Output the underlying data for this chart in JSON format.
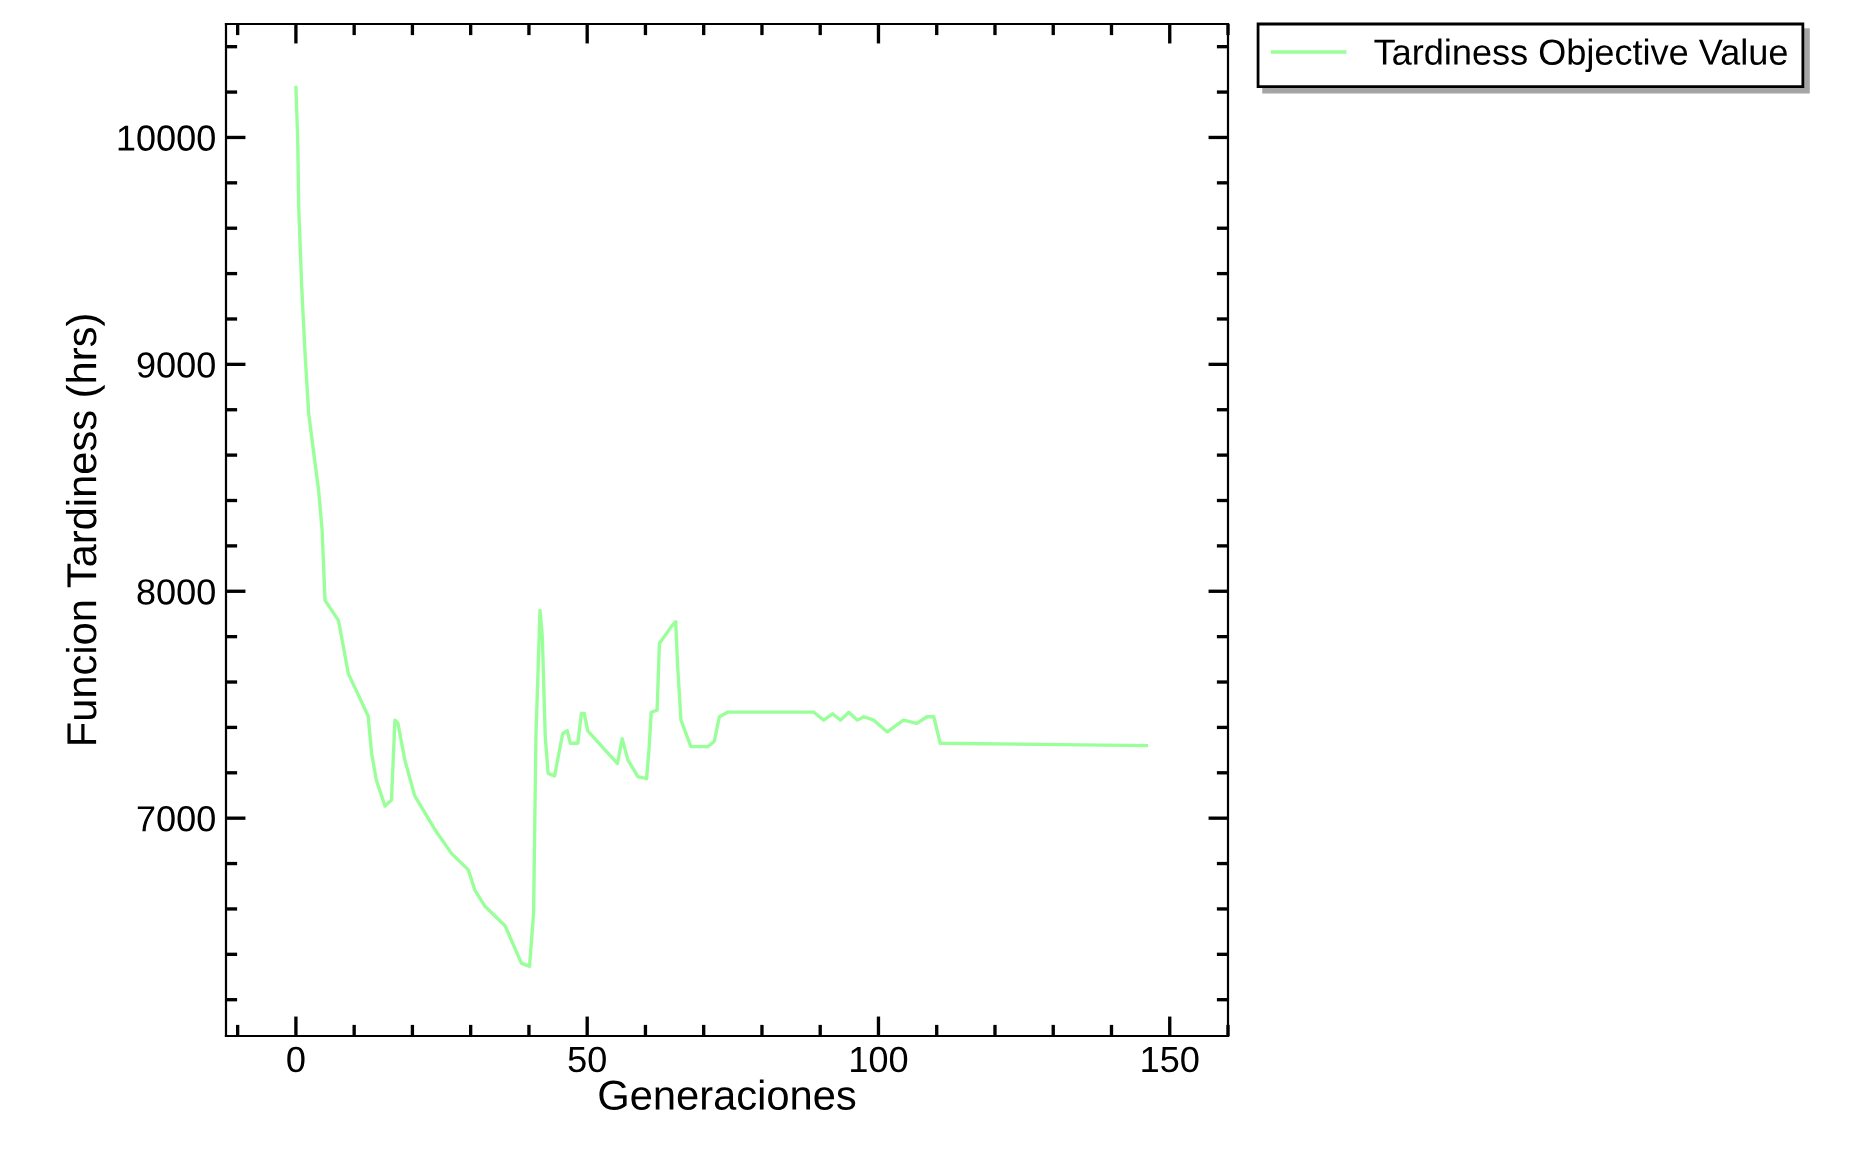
{
  "chart_data": {
    "type": "line",
    "xlabel": "Generaciones",
    "ylabel": "Funcion Tardiness (hrs)",
    "xlim": [
      -12,
      160
    ],
    "xticks": [
      0,
      50,
      100,
      150
    ],
    "ylim": [
      6040,
      10500
    ],
    "yticks": [
      7000,
      8000,
      9000,
      10000
    ],
    "grid": false,
    "legend": "top right",
    "marker": "none",
    "line_style": "solid",
    "series": [
      {
        "name": "Tardiness Objective Value",
        "color": "#99ff99",
        "x": [
          0,
          0.3,
          0.5,
          1,
          1.6,
          2.2,
          3,
          3.9,
          4.5,
          5,
          7.3,
          9,
          12.4,
          13,
          13.8,
          15.3,
          16.4,
          17,
          17.5,
          18.7,
          20.4,
          23.9,
          26.7,
          29.6,
          30.7,
          32.4,
          35.9,
          38.7,
          40.1,
          40.8,
          41.2,
          41.9,
          42.3,
          42.8,
          43.3,
          44.4,
          45.8,
          46.6,
          47.1,
          48.4,
          49,
          49.5,
          50.1,
          54.1,
          55.2,
          56,
          57,
          58.7,
          60.2,
          60.6,
          61,
          62,
          62.4,
          64.4,
          65.2,
          65.5,
          66.1,
          67.8,
          70.7,
          71.8,
          72.7,
          74.1,
          88.9,
          90.6,
          92.1,
          93.5,
          94.9,
          96.4,
          97.5,
          99.2,
          101.5,
          104.3,
          106.6,
          108.3,
          109.5,
          110.6,
          146
        ],
        "values": [
          10220,
          10000,
          9677,
          9340,
          9034,
          8782,
          8620,
          8445,
          8268,
          7960,
          7872,
          7637,
          7450,
          7285,
          7168,
          7053,
          7080,
          7432,
          7420,
          7256,
          7098,
          6948,
          6845,
          6772,
          6684,
          6613,
          6526,
          6361,
          6347,
          6581,
          7359,
          7916,
          7799,
          7359,
          7197,
          7186,
          7373,
          7385,
          7330,
          7330,
          7462,
          7462,
          7385,
          7271,
          7241,
          7350,
          7256,
          7183,
          7174,
          7300,
          7467,
          7476,
          7770,
          7843,
          7866,
          7681,
          7432,
          7315,
          7315,
          7338,
          7447,
          7467,
          7467,
          7432,
          7460,
          7432,
          7467,
          7432,
          7447,
          7432,
          7380,
          7432,
          7418,
          7447,
          7447,
          7330,
          7320
        ]
      }
    ]
  }
}
